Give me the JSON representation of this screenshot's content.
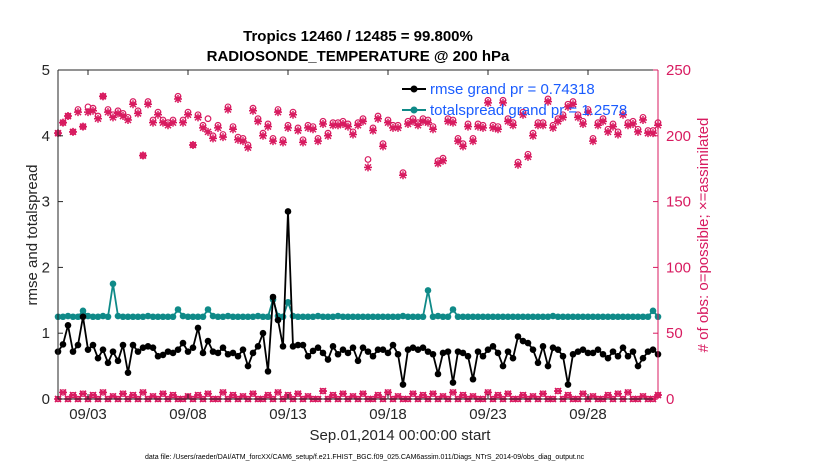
{
  "chart_data": {
    "type": "line",
    "title": "Tropics 12460 / 12485 = 99.800%",
    "subtitle": "RADIOSONDE_TEMPERATURE @ 200 hPa",
    "xlabel": "Sep.01,2014 00:00:00 start",
    "ylabel": "rmse and totalspread",
    "ylabel_right": "# of obs: o=possible; ×=assimilated",
    "footnote": "data file: /Users/raeder/DAI/ATM_forcXX/CAM6_setup/f.e21.FHIST_BGC.f09_025.CAM6assim.011/Diags_NTrS_2014-09/obs_diag_output.nc",
    "xlim": [
      1.5,
      31.5
    ],
    "ylim": [
      0,
      5
    ],
    "ylim_right": [
      0,
      250
    ],
    "xticks": [
      3,
      8,
      13,
      18,
      23,
      28
    ],
    "xtick_labels": [
      "09/03",
      "09/08",
      "09/13",
      "09/18",
      "09/23",
      "09/28"
    ],
    "yticks": [
      "0",
      "1",
      "2",
      "3",
      "4",
      "5"
    ],
    "yticks_right": [
      "0",
      "50",
      "100",
      "150",
      "200",
      "250"
    ],
    "colors": {
      "rmse": "#000000",
      "spread": "#0f8a88",
      "obs": "#d81b60",
      "legend_text": "#1a5cff"
    },
    "series": [
      {
        "name": "rmse grand pr = 0.74318",
        "values": [
          0.72,
          0.83,
          1.12,
          0.72,
          0.82,
          1.25,
          0.75,
          0.82,
          0.62,
          0.75,
          0.55,
          0.72,
          0.58,
          0.82,
          0.4,
          0.82,
          0.72,
          0.78,
          0.8,
          0.78,
          0.65,
          0.67,
          0.72,
          0.7,
          0.75,
          0.85,
          0.72,
          0.78,
          1.08,
          0.7,
          0.88,
          0.72,
          0.7,
          0.78,
          0.68,
          0.7,
          0.65,
          0.75,
          0.5,
          0.7,
          0.8,
          1.0,
          0.42,
          1.55,
          1.2,
          0.8,
          2.85,
          0.8,
          0.82,
          0.82,
          0.65,
          0.73,
          0.78,
          0.7,
          0.6,
          0.8,
          0.68,
          0.75,
          0.7,
          0.78,
          0.58,
          0.78,
          0.72,
          0.65,
          0.75,
          0.75,
          0.7,
          0.82,
          0.68,
          0.22,
          0.75,
          0.78,
          0.75,
          0.78,
          0.72,
          0.68,
          0.38,
          0.7,
          0.72,
          0.25,
          0.72,
          0.7,
          0.65,
          0.3,
          0.72,
          0.65,
          0.75,
          0.8,
          0.7,
          0.5,
          0.72,
          0.62,
          0.95,
          0.88,
          0.85,
          0.75,
          0.55,
          0.8,
          0.5,
          0.78,
          0.75,
          0.65,
          0.22,
          0.68,
          0.72,
          0.75,
          0.7,
          0.7,
          0.75,
          0.68,
          0.62,
          0.72,
          0.65,
          0.78,
          0.65,
          0.72,
          0.5,
          0.62,
          0.72,
          0.75,
          0.68,
          0.72,
          0.55
        ]
      },
      {
        "name": "totalspread grand pr = 1.2578",
        "values": [
          1.25,
          1.25,
          1.26,
          1.25,
          1.25,
          1.34,
          1.26,
          1.25,
          1.25,
          1.26,
          1.25,
          1.75,
          1.26,
          1.25,
          1.25,
          1.25,
          1.25,
          1.25,
          1.26,
          1.25,
          1.25,
          1.25,
          1.25,
          1.25,
          1.36,
          1.26,
          1.25,
          1.25,
          1.25,
          1.25,
          1.36,
          1.26,
          1.25,
          1.25,
          1.26,
          1.25,
          1.25,
          1.25,
          1.25,
          1.25,
          1.26,
          1.25,
          1.25,
          1.51,
          1.26,
          1.25,
          1.47,
          1.26,
          1.25,
          1.25,
          1.25,
          1.25,
          1.26,
          1.25,
          1.25,
          1.25,
          1.26,
          1.25,
          1.25,
          1.25,
          1.25,
          1.25,
          1.25,
          1.25,
          1.25,
          1.25,
          1.25,
          1.25,
          1.25,
          1.26,
          1.25,
          1.25,
          1.25,
          1.25,
          1.65,
          1.25,
          1.26,
          1.25,
          1.25,
          1.36,
          1.25,
          1.25,
          1.25,
          1.25,
          1.25,
          1.25,
          1.25,
          1.25,
          1.25,
          1.25,
          1.25,
          1.25,
          1.25,
          1.25,
          1.25,
          1.25,
          1.25,
          1.25,
          1.25,
          1.26,
          1.25,
          1.25,
          1.25,
          1.25,
          1.25,
          1.25,
          1.25,
          1.25,
          1.25,
          1.25,
          1.25,
          1.25,
          1.25,
          1.25,
          1.25,
          1.25,
          1.25,
          1.25,
          1.25,
          1.34,
          1.25,
          1.25,
          1.27
        ]
      },
      {
        "name": "obs possible",
        "axis": "right",
        "values": [
          202,
          210,
          215,
          203,
          220,
          207,
          222,
          221,
          215,
          230,
          220,
          216,
          219,
          217,
          214,
          226,
          219,
          185,
          226,
          212,
          218,
          212,
          210,
          212,
          230,
          212,
          218,
          193,
          216,
          208,
          213,
          200,
          208,
          201,
          222,
          207,
          199,
          198,
          193,
          221,
          213,
          202,
          209,
          198,
          220,
          197,
          208,
          218,
          206,
          197,
          208,
          207,
          198,
          211,
          202,
          210,
          210,
          211,
          209,
          203,
          210,
          213,
          182,
          206,
          215,
          194,
          212,
          208,
          208,
          172,
          211,
          213,
          210,
          213,
          212,
          207,
          181,
          183,
          213,
          212,
          198,
          194,
          209,
          198,
          209,
          208,
          227,
          208,
          207,
          227,
          213,
          210,
          180,
          218,
          186,
          202,
          210,
          210,
          228,
          208,
          213,
          216,
          224,
          226,
          216,
          211,
          220,
          198,
          210,
          213,
          205,
          209,
          203,
          218,
          210,
          211,
          205,
          214,
          204,
          204,
          210,
          210,
          204
        ]
      },
      {
        "name": "obs assimilated",
        "axis": "right",
        "values": [
          202,
          210,
          215,
          203,
          218,
          207,
          218,
          219,
          213,
          230,
          218,
          214,
          217,
          215,
          212,
          224,
          217,
          185,
          224,
          210,
          216,
          210,
          208,
          210,
          228,
          210,
          216,
          193,
          214,
          206,
          203,
          198,
          206,
          199,
          220,
          205,
          197,
          196,
          191,
          219,
          211,
          200,
          207,
          196,
          218,
          195,
          206,
          216,
          204,
          195,
          206,
          205,
          196,
          209,
          200,
          208,
          208,
          209,
          207,
          201,
          208,
          211,
          176,
          204,
          213,
          192,
          210,
          206,
          206,
          170,
          209,
          211,
          208,
          211,
          210,
          205,
          179,
          181,
          211,
          210,
          196,
          192,
          207,
          196,
          207,
          206,
          225,
          206,
          205,
          225,
          211,
          208,
          178,
          216,
          184,
          200,
          208,
          208,
          226,
          206,
          211,
          214,
          222,
          224,
          214,
          209,
          218,
          196,
          208,
          211,
          203,
          207,
          201,
          216,
          208,
          209,
          203,
          212,
          202,
          202,
          208,
          208,
          202
        ]
      },
      {
        "name": "obs near zero",
        "axis": "right",
        "values": [
          0,
          5,
          0,
          3,
          0,
          4,
          0,
          3,
          0,
          5,
          0,
          2,
          0,
          4,
          0,
          3,
          0,
          5,
          0,
          2,
          0,
          4,
          0,
          3,
          0,
          0,
          2,
          0,
          3,
          0,
          4,
          0,
          0,
          5,
          0,
          3,
          0,
          2,
          0,
          4,
          0,
          0,
          3,
          0,
          5,
          0,
          3,
          0,
          4,
          0,
          2,
          0,
          0,
          6,
          0,
          3,
          0,
          4,
          0,
          2,
          0,
          4,
          0,
          0,
          3,
          0,
          5,
          0,
          2,
          0,
          0,
          4,
          0,
          3,
          0,
          4,
          0,
          2,
          0,
          5,
          0,
          3,
          0,
          2,
          0,
          0,
          5,
          0,
          3,
          0,
          4,
          0,
          0,
          3,
          0,
          2,
          0,
          4,
          0,
          0,
          6,
          0,
          3,
          0,
          0,
          4,
          0,
          2,
          0,
          0,
          3,
          0,
          4,
          0,
          5,
          0,
          0,
          2,
          0,
          0,
          3,
          0,
          0,
          4
        ]
      }
    ],
    "legend_placement": "top-right"
  }
}
